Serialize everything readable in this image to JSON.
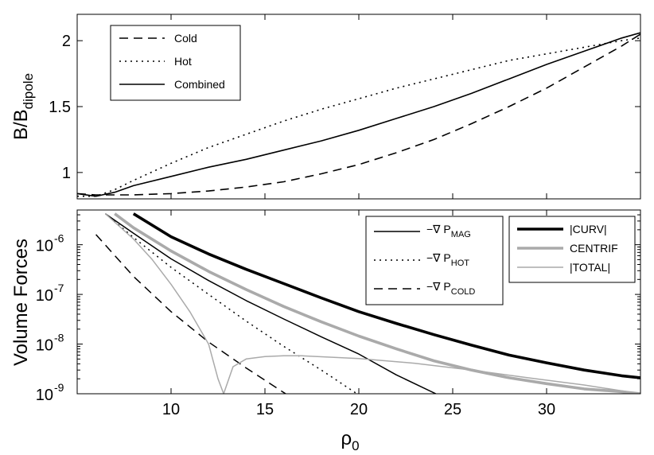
{
  "chart_data": [
    {
      "type": "line",
      "xlim": [
        5,
        35
      ],
      "ylim": [
        0.8,
        2.2
      ],
      "ylabel": "B/B",
      "ylabel_sub": "dipole",
      "yticks": [
        1,
        1.5,
        2
      ],
      "ytick_labels": [
        "1",
        "1.5",
        "2"
      ],
      "grid": false,
      "legend": {
        "position": "top-left"
      },
      "series": [
        {
          "name": "Cold",
          "dash": "dashed",
          "color": "#000000",
          "width": 1.6,
          "x": [
            5,
            6,
            8,
            10,
            12,
            14,
            16,
            18,
            20,
            22,
            24,
            26,
            28,
            30,
            32,
            34,
            35
          ],
          "y": [
            0.84,
            0.83,
            0.83,
            0.84,
            0.86,
            0.89,
            0.93,
            0.99,
            1.06,
            1.15,
            1.25,
            1.37,
            1.5,
            1.64,
            1.8,
            1.96,
            2.05
          ]
        },
        {
          "name": "Hot",
          "dash": "dotted",
          "color": "#000000",
          "width": 1.6,
          "x": [
            5,
            6,
            7,
            8,
            10,
            12,
            14,
            16,
            18,
            20,
            22,
            24,
            26,
            28,
            30,
            32,
            34,
            35
          ],
          "y": [
            0.82,
            0.82,
            0.87,
            0.94,
            1.07,
            1.19,
            1.29,
            1.39,
            1.48,
            1.56,
            1.64,
            1.71,
            1.78,
            1.85,
            1.9,
            1.95,
            2.0,
            2.02
          ]
        },
        {
          "name": "Combined",
          "dash": "solid",
          "color": "#000000",
          "width": 1.6,
          "x": [
            5,
            6,
            7,
            8,
            10,
            12,
            14,
            16,
            18,
            20,
            22,
            24,
            26,
            28,
            30,
            32,
            34,
            35
          ],
          "y": [
            0.84,
            0.82,
            0.85,
            0.9,
            0.97,
            1.04,
            1.1,
            1.17,
            1.24,
            1.32,
            1.41,
            1.5,
            1.6,
            1.71,
            1.82,
            1.92,
            2.02,
            2.06
          ]
        }
      ]
    },
    {
      "type": "line",
      "xlim": [
        5,
        35
      ],
      "ylim": [
        1e-09,
        5e-06
      ],
      "yscale": "log",
      "xlabel": "ρ",
      "xlabel_sub": "0",
      "ylabel": "Volume Forces",
      "xticks": [
        10,
        15,
        20,
        25,
        30
      ],
      "xtick_labels": [
        "10",
        "15",
        "20",
        "25",
        "30"
      ],
      "yticks": [
        1e-09,
        1e-08,
        1e-07,
        1e-06
      ],
      "ytick_exponents": [
        "-9",
        "-8",
        "-7",
        "-6"
      ],
      "ytick_base": "10",
      "grid": false,
      "legends": [
        {
          "position": "top-center",
          "entries": [
            {
              "main": "−∇ P",
              "sub": "MAG",
              "series": 0
            },
            {
              "main": "−∇ P",
              "sub": "HOT",
              "series": 1
            },
            {
              "main": "−∇ P",
              "sub": "COLD",
              "series": 2
            }
          ]
        },
        {
          "position": "top-right",
          "entries": [
            {
              "main": "|CURV|",
              "series": 3
            },
            {
              "main": "CENTRIF",
              "series": 4
            },
            {
              "main": "|TOTAL|",
              "series": 5
            }
          ]
        }
      ],
      "series": [
        {
          "dash": "solid",
          "color": "#000000",
          "width": 1.5,
          "x": [
            6.5,
            8,
            10,
            12,
            14,
            16,
            18,
            20,
            22,
            24.1
          ],
          "y": [
            4.2e-06,
            1.7e-06,
            5.2e-07,
            1.9e-07,
            7.5e-08,
            3.2e-08,
            1.4e-08,
            6.3e-09,
            2.4e-09,
            1e-09
          ]
        },
        {
          "dash": "dotted",
          "color": "#000000",
          "width": 1.5,
          "x": [
            6.5,
            8,
            10,
            12,
            14,
            16,
            18,
            19.9
          ],
          "y": [
            4.2e-06,
            1.4e-06,
            3.5e-07,
            1e-07,
            2.9e-08,
            9e-09,
            3e-09,
            1e-09
          ]
        },
        {
          "dash": "dashed",
          "color": "#000000",
          "width": 1.5,
          "x": [
            6,
            8,
            10,
            12,
            14,
            16.1
          ],
          "y": [
            1.6e-06,
            2.3e-07,
            4.5e-08,
            1.1e-08,
            3.3e-09,
            1e-09
          ]
        },
        {
          "dash": "solid",
          "color": "#000000",
          "width": 3.6,
          "x": [
            8,
            10,
            12,
            14,
            16,
            18,
            20,
            22,
            24,
            26,
            28,
            30,
            32,
            34,
            35
          ],
          "y": [
            4.2e-06,
            1.45e-06,
            6.5e-07,
            3.2e-07,
            1.65e-07,
            8.5e-08,
            4.5e-08,
            2.6e-08,
            1.55e-08,
            9.5e-09,
            6e-09,
            4.2e-09,
            3e-09,
            2.3e-09,
            2.1e-09
          ]
        },
        {
          "dash": "solid",
          "color": "#aaaaaa",
          "width": 3.6,
          "x": [
            7,
            8,
            10,
            12,
            14,
            16,
            18,
            20,
            22,
            24,
            26,
            28,
            30,
            32,
            34,
            35
          ],
          "y": [
            4.2e-06,
            2.2e-06,
            7.5e-07,
            2.9e-07,
            1.25e-07,
            5.7e-08,
            2.8e-08,
            1.45e-08,
            8e-09,
            4.6e-09,
            3e-09,
            2.1e-09,
            1.6e-09,
            1.25e-09,
            1.1e-09,
            1e-09
          ]
        },
        {
          "dash": "solid",
          "color": "#aaaaaa",
          "width": 1.5,
          "x": [
            6.5,
            8,
            9,
            10,
            11,
            12,
            12.5,
            12.8,
            13.3,
            14,
            15,
            16,
            17,
            20,
            23,
            26,
            29,
            32,
            35
          ],
          "y": [
            4.2e-06,
            1.3e-06,
            5e-07,
            1.6e-07,
            4.5e-08,
            1e-08,
            2e-09,
            1e-09,
            3.5e-09,
            5e-09,
            5.6e-09,
            5.8e-09,
            5.8e-09,
            5.1e-09,
            4.1e-09,
            3e-09,
            2.1e-09,
            1.5e-09,
            1e-09
          ]
        }
      ]
    }
  ]
}
